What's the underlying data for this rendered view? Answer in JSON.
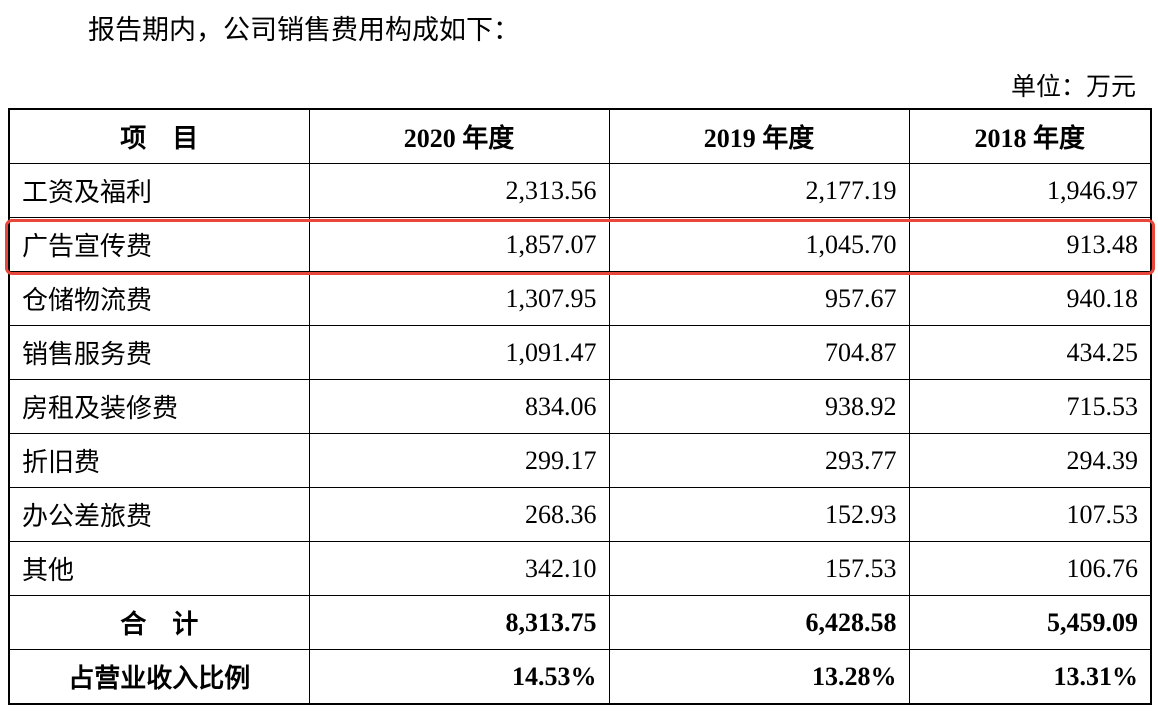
{
  "header": {
    "title": "报告期内，公司销售费用构成如下：",
    "unit": "单位：万元"
  },
  "table": {
    "columns": [
      "项　目",
      "2020 年度",
      "2019 年度",
      "2018 年度"
    ],
    "rows": [
      [
        "工资及福利",
        "2,313.56",
        "2,177.19",
        "1,946.97"
      ],
      [
        "广告宣传费",
        "1,857.07",
        "1,045.70",
        "913.48"
      ],
      [
        "仓储物流费",
        "1,307.95",
        "957.67",
        "940.18"
      ],
      [
        "销售服务费",
        "1,091.47",
        "704.87",
        "434.25"
      ],
      [
        "房租及装修费",
        "834.06",
        "938.92",
        "715.53"
      ],
      [
        "折旧费",
        "299.17",
        "293.77",
        "294.39"
      ],
      [
        "办公差旅费",
        "268.36",
        "152.93",
        "107.53"
      ],
      [
        "其他",
        "342.10",
        "157.53",
        "106.76"
      ]
    ],
    "total": [
      "合　计",
      "8,313.75",
      "6,428.58",
      "5,459.09"
    ],
    "ratio": [
      "占营业收入比例",
      "14.53%",
      "13.28%",
      "13.31%"
    ]
  }
}
